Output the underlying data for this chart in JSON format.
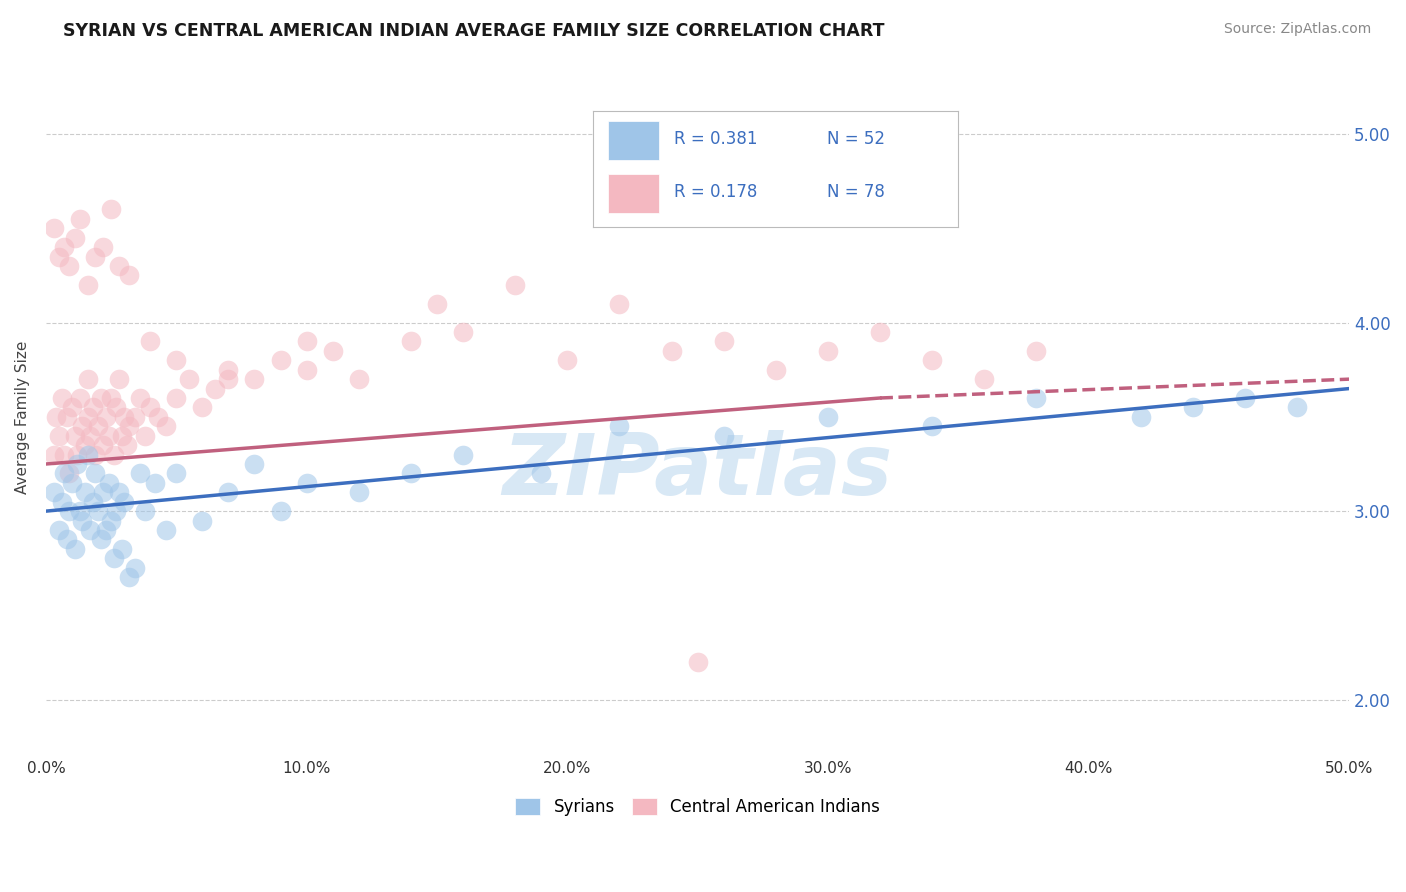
{
  "title": "SYRIAN VS CENTRAL AMERICAN INDIAN AVERAGE FAMILY SIZE CORRELATION CHART",
  "source": "Source: ZipAtlas.com",
  "ylabel": "Average Family Size",
  "yticks_right": [
    2.0,
    3.0,
    4.0,
    5.0
  ],
  "xlim": [
    0.0,
    0.5
  ],
  "ylim": [
    1.7,
    5.3
  ],
  "legend_r1": "R = 0.381",
  "legend_n1": "N = 52",
  "legend_r2": "R = 0.178",
  "legend_n2": "N = 78",
  "color_blue": "#9fc5e8",
  "color_pink": "#f4b8c1",
  "trendline_blue": "#3c6ebf",
  "trendline_pink": "#c0607e",
  "watermark_color": "#d8e8f5",
  "grid_color": "#cccccc",
  "syrians_x": [
    0.003,
    0.005,
    0.006,
    0.007,
    0.008,
    0.009,
    0.01,
    0.011,
    0.012,
    0.013,
    0.014,
    0.015,
    0.016,
    0.017,
    0.018,
    0.019,
    0.02,
    0.021,
    0.022,
    0.023,
    0.024,
    0.025,
    0.026,
    0.027,
    0.028,
    0.029,
    0.03,
    0.032,
    0.034,
    0.036,
    0.038,
    0.042,
    0.046,
    0.05,
    0.06,
    0.07,
    0.08,
    0.09,
    0.1,
    0.12,
    0.14,
    0.16,
    0.19,
    0.22,
    0.26,
    0.3,
    0.34,
    0.38,
    0.42,
    0.44,
    0.46,
    0.48
  ],
  "syrians_y": [
    3.1,
    2.9,
    3.05,
    3.2,
    2.85,
    3.0,
    3.15,
    2.8,
    3.25,
    3.0,
    2.95,
    3.1,
    3.3,
    2.9,
    3.05,
    3.2,
    3.0,
    2.85,
    3.1,
    2.9,
    3.15,
    2.95,
    2.75,
    3.0,
    3.1,
    2.8,
    3.05,
    2.65,
    2.7,
    3.2,
    3.0,
    3.15,
    2.9,
    3.2,
    2.95,
    3.1,
    3.25,
    3.0,
    3.15,
    3.1,
    3.2,
    3.3,
    3.2,
    3.45,
    3.4,
    3.5,
    3.45,
    3.6,
    3.5,
    3.55,
    3.6,
    3.55
  ],
  "cai_x": [
    0.003,
    0.004,
    0.005,
    0.006,
    0.007,
    0.008,
    0.009,
    0.01,
    0.011,
    0.012,
    0.013,
    0.014,
    0.015,
    0.016,
    0.016,
    0.017,
    0.018,
    0.019,
    0.02,
    0.021,
    0.022,
    0.023,
    0.024,
    0.025,
    0.026,
    0.027,
    0.028,
    0.029,
    0.03,
    0.031,
    0.032,
    0.034,
    0.036,
    0.038,
    0.04,
    0.043,
    0.046,
    0.05,
    0.055,
    0.06,
    0.065,
    0.07,
    0.08,
    0.09,
    0.1,
    0.11,
    0.12,
    0.14,
    0.16,
    0.18,
    0.2,
    0.22,
    0.24,
    0.26,
    0.28,
    0.3,
    0.32,
    0.34,
    0.36,
    0.38,
    0.003,
    0.005,
    0.007,
    0.009,
    0.011,
    0.013,
    0.016,
    0.019,
    0.022,
    0.025,
    0.028,
    0.032,
    0.04,
    0.05,
    0.07,
    0.1,
    0.15,
    0.25
  ],
  "cai_y": [
    3.3,
    3.5,
    3.4,
    3.6,
    3.3,
    3.5,
    3.2,
    3.55,
    3.4,
    3.3,
    3.6,
    3.45,
    3.35,
    3.5,
    3.7,
    3.4,
    3.55,
    3.3,
    3.45,
    3.6,
    3.35,
    3.5,
    3.4,
    3.6,
    3.3,
    3.55,
    3.7,
    3.4,
    3.5,
    3.35,
    3.45,
    3.5,
    3.6,
    3.4,
    3.55,
    3.5,
    3.45,
    3.6,
    3.7,
    3.55,
    3.65,
    3.75,
    3.7,
    3.8,
    3.75,
    3.85,
    3.7,
    3.9,
    3.95,
    4.2,
    3.8,
    4.1,
    3.85,
    3.9,
    3.75,
    3.85,
    3.95,
    3.8,
    3.7,
    3.85,
    4.5,
    4.35,
    4.4,
    4.3,
    4.45,
    4.55,
    4.2,
    4.35,
    4.4,
    4.6,
    4.3,
    4.25,
    3.9,
    3.8,
    3.7,
    3.9,
    4.1,
    2.2
  ],
  "trendline_blue_x0": 0.0,
  "trendline_blue_y0": 3.0,
  "trendline_blue_x1": 0.5,
  "trendline_blue_y1": 3.65,
  "trendline_pink_solid_x0": 0.0,
  "trendline_pink_solid_y0": 3.25,
  "trendline_pink_solid_x1": 0.32,
  "trendline_pink_solid_y1": 3.6,
  "trendline_pink_dash_x0": 0.32,
  "trendline_pink_dash_y0": 3.6,
  "trendline_pink_dash_x1": 0.5,
  "trendline_pink_dash_y1": 3.7
}
